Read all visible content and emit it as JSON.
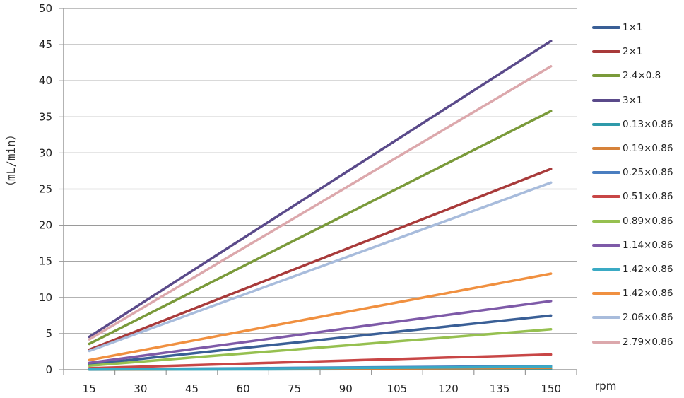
{
  "chart_data": {
    "type": "line",
    "title": "",
    "xlabel": "rpm",
    "ylabel": "（mL/min）",
    "ylim": [
      0,
      50
    ],
    "yticks": [
      0,
      5,
      10,
      15,
      20,
      25,
      30,
      35,
      40,
      45,
      50
    ],
    "grid": "horizontal",
    "legend_position": "right",
    "categories": [
      15,
      30,
      45,
      60,
      75,
      90,
      105,
      120,
      135,
      150
    ],
    "series": [
      {
        "name": "1×1",
        "color": "#3a5f96",
        "values": [
          0.75,
          1.5,
          2.25,
          3.0,
          3.75,
          4.5,
          5.25,
          6.0,
          6.75,
          7.5
        ]
      },
      {
        "name": "2×1",
        "color": "#a83a3a",
        "values": [
          2.78,
          5.56,
          8.34,
          11.12,
          13.9,
          16.68,
          19.46,
          22.24,
          25.02,
          27.8
        ]
      },
      {
        "name": "2.4×0.8",
        "color": "#7a9a3a",
        "values": [
          3.58,
          7.16,
          10.74,
          14.32,
          17.9,
          21.48,
          25.06,
          28.64,
          32.22,
          35.8
        ]
      },
      {
        "name": "3×1",
        "color": "#5a4a8a",
        "values": [
          4.55,
          9.1,
          13.65,
          18.2,
          22.75,
          27.3,
          31.85,
          36.4,
          40.95,
          45.5
        ]
      },
      {
        "name": "0.13×0.86",
        "color": "#2f9aaa",
        "values": [
          0.012,
          0.024,
          0.036,
          0.048,
          0.06,
          0.072,
          0.084,
          0.096,
          0.108,
          0.12
        ]
      },
      {
        "name": "0.19×0.86",
        "color": "#d6823a",
        "values": [
          0.025,
          0.05,
          0.075,
          0.1,
          0.125,
          0.15,
          0.175,
          0.2,
          0.225,
          0.25
        ]
      },
      {
        "name": "0.25×0.86",
        "color": "#4a7ec0",
        "values": [
          0.05,
          0.1,
          0.15,
          0.2,
          0.25,
          0.3,
          0.35,
          0.4,
          0.45,
          0.5
        ]
      },
      {
        "name": "0.51×0.86",
        "color": "#c84646",
        "values": [
          0.21,
          0.42,
          0.63,
          0.84,
          1.05,
          1.26,
          1.47,
          1.68,
          1.89,
          2.1
        ]
      },
      {
        "name": "0.89×0.86",
        "color": "#96c050",
        "values": [
          0.56,
          1.12,
          1.68,
          2.24,
          2.8,
          3.36,
          3.92,
          4.48,
          5.04,
          5.6
        ]
      },
      {
        "name": "1.14×0.86",
        "color": "#7e5aa8",
        "values": [
          0.95,
          1.9,
          2.85,
          3.8,
          4.75,
          5.7,
          6.65,
          7.6,
          8.55,
          9.5
        ]
      },
      {
        "name": "1.42×0.86",
        "color": "#3aaac4",
        "values": [
          0.04,
          0.08,
          0.12,
          0.16,
          0.2,
          0.24,
          0.28,
          0.32,
          0.36,
          0.4
        ]
      },
      {
        "name": "1.42×0.86",
        "color": "#f09040",
        "values": [
          1.33,
          2.66,
          3.99,
          5.32,
          6.65,
          7.98,
          9.31,
          10.64,
          11.97,
          13.3
        ]
      },
      {
        "name": "2.06×0.86",
        "color": "#a8bcdc",
        "values": [
          2.59,
          5.18,
          7.77,
          10.36,
          12.95,
          15.54,
          18.13,
          20.72,
          23.31,
          25.9
        ]
      },
      {
        "name": "2.79×0.86",
        "color": "#dca8ac",
        "values": [
          4.2,
          8.4,
          12.6,
          16.8,
          21.0,
          25.2,
          29.4,
          33.6,
          37.8,
          42.0
        ]
      }
    ]
  },
  "axes": {
    "y_title": "（mL/min）",
    "x_title": "rpm"
  }
}
